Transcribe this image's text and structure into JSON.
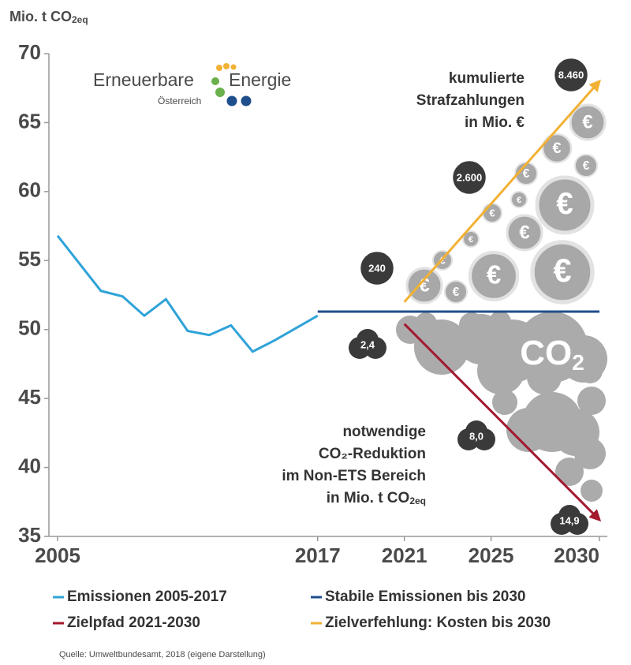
{
  "chart_data": {
    "type": "line",
    "ylabel": "Mio. t CO",
    "ylabel_sub": "2eq",
    "xlim": [
      2004.6,
      2030
    ],
    "xticks": [
      2005,
      2017,
      2021,
      2025,
      2030
    ],
    "ylim": [
      35,
      70
    ],
    "yticks": [
      35,
      40,
      45,
      50,
      55,
      60,
      65,
      70
    ],
    "grid": false,
    "series": [
      {
        "name": "Emissionen 2005-2017",
        "color": "#2fa3d8",
        "x": [
          2005,
          2006,
          2007,
          2008,
          2009,
          2010,
          2011,
          2012,
          2013,
          2014,
          2015,
          2016,
          2017
        ],
        "values": [
          56.8,
          54.8,
          52.8,
          52.4,
          51.0,
          52.2,
          49.9,
          49.6,
          50.3,
          48.4,
          49.2,
          50.1,
          51.0
        ]
      },
      {
        "name": "Stabile Emissionen bis 2030",
        "color": "#1f4e8c",
        "x": [
          2017,
          2030
        ],
        "values": [
          51.3,
          51.3
        ]
      },
      {
        "name": "Zielpfad 2021-2030",
        "color": "#a3192e",
        "x": [
          2021,
          2030
        ],
        "values": [
          50.4,
          36.2
        ],
        "arrow": true
      },
      {
        "name": "Zielverfehlung: Kosten bis 2030",
        "color": "#f2b134",
        "x": [
          2021,
          2030
        ],
        "values": [
          52.0,
          68.0
        ],
        "arrow": true
      }
    ],
    "annotations": {
      "costs": {
        "lines": [
          "kumulierte",
          "Strafzahlungen",
          "in Mio. €"
        ],
        "bubbles": [
          "240",
          "2.600",
          "8.460"
        ]
      },
      "reduction": {
        "lines": [
          "notwendige",
          "CO₂-Reduktion",
          "im Non-ETS Bereich",
          "in Mio. t CO"
        ],
        "sub": "2eq",
        "bubbles": [
          "2,4",
          "8,0",
          "14,9"
        ]
      }
    },
    "coin_symbol": "€",
    "cloud_label": {
      "main": "CO",
      "sub": "2"
    }
  },
  "logo": {
    "left": "Erneuerbare",
    "right": "Energie",
    "sub": "Österreich"
  },
  "source": "Quelle: Umweltbundesamt, 2018 (eigene Darstellung)"
}
